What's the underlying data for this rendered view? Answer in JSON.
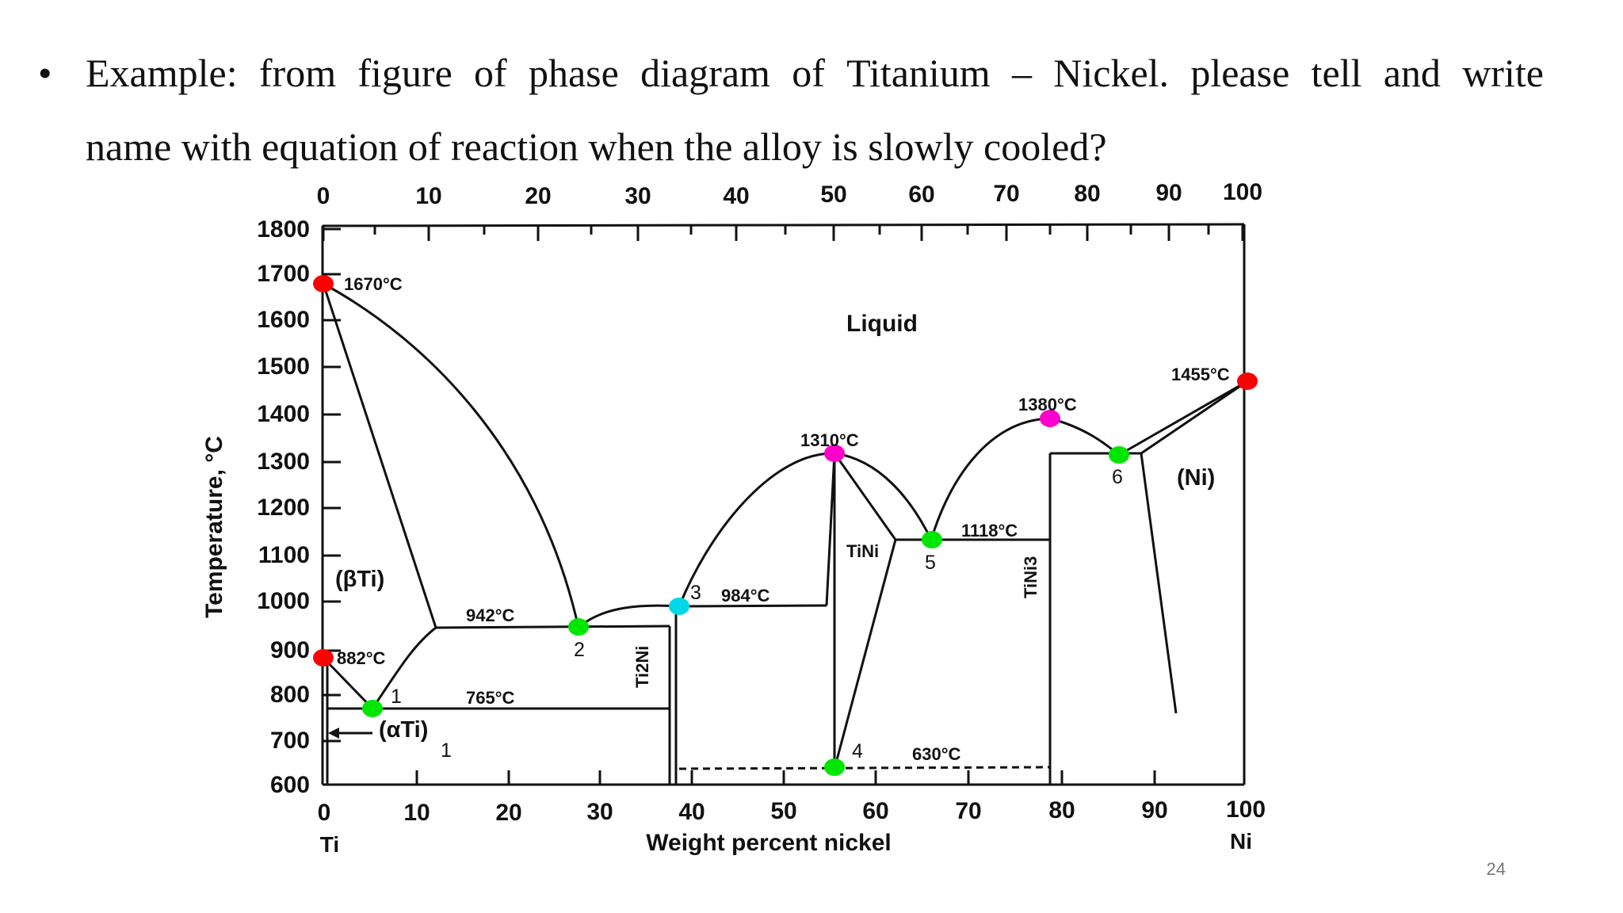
{
  "slide": {
    "bullet": "•",
    "question_line1_words": [
      "Example:",
      "from",
      "figure",
      "of",
      "phase",
      "diagram",
      "of",
      "Titanium",
      "–",
      "Nickel.",
      "please",
      "tell",
      "and",
      "write"
    ],
    "question_line2": "name with equation of reaction when the alloy is slowly cooled?",
    "page_number": "24"
  },
  "colors": {
    "background": "#ffffff",
    "line": "#111111",
    "melting_point": "#ff0000",
    "eutectoid_eutectic": "#00e600",
    "congruent_melting": "#ff00cc",
    "peritectic": "#00d8e8"
  },
  "chart_data": {
    "type": "phase-diagram",
    "axes": {
      "x_top_ticks": [
        "0",
        "10",
        "20",
        "30",
        "40",
        "50",
        "60",
        "70",
        "80",
        "90",
        "100"
      ],
      "x_bottom_ticks": [
        "0",
        "10",
        "20",
        "30",
        "40",
        "50",
        "60",
        "70",
        "80",
        "90",
        "100"
      ],
      "y_ticks": [
        "1800",
        "1700",
        "1600",
        "1500",
        "1400",
        "1300",
        "1200",
        "1100",
        "1000",
        "900",
        "800",
        "700",
        "600"
      ],
      "xlabel": "Weight percent nickel",
      "ylabel": "Temperature, °C",
      "x_left_element": "Ti",
      "x_right_element": "Ni",
      "xlim": [
        0,
        100
      ],
      "ylim": [
        600,
        1800
      ]
    },
    "regions": [
      "Liquid",
      "(βTi)",
      "(αTi)",
      "(Ni)",
      "Ti2Ni",
      "TiNi",
      "TiNi3"
    ],
    "temperature_labels": [
      "1670°C",
      "1455°C",
      "1380°C",
      "1310°C",
      "1118°C",
      "984°C",
      "942°C",
      "882°C",
      "765°C",
      "630°C"
    ],
    "points": [
      {
        "label": "",
        "wt_ni": 0,
        "temp_c": 1670,
        "type": "melting_point"
      },
      {
        "label": "",
        "wt_ni": 0,
        "temp_c": 882,
        "type": "melting_point"
      },
      {
        "label": "",
        "wt_ni": 100,
        "temp_c": 1455,
        "type": "melting_point"
      },
      {
        "label": "1",
        "wt_ni": 5.5,
        "temp_c": 765,
        "type": "eutectoid_eutectic"
      },
      {
        "label": "2",
        "wt_ni": 28,
        "temp_c": 942,
        "type": "eutectoid_eutectic"
      },
      {
        "label": "3",
        "wt_ni": 38.5,
        "temp_c": 984,
        "type": "peritectic"
      },
      {
        "label": "4",
        "wt_ni": 55.5,
        "temp_c": 630,
        "type": "eutectoid_eutectic"
      },
      {
        "label": "5",
        "wt_ni": 66,
        "temp_c": 1118,
        "type": "eutectoid_eutectic"
      },
      {
        "label": "6",
        "wt_ni": 86.5,
        "temp_c": 1310,
        "type": "eutectoid_eutectic"
      },
      {
        "label": "",
        "wt_ni": 55.5,
        "temp_c": 1310,
        "type": "congruent_melting"
      },
      {
        "label": "",
        "wt_ni": 79,
        "temp_c": 1380,
        "type": "congruent_melting"
      }
    ],
    "stray_label": "1"
  }
}
